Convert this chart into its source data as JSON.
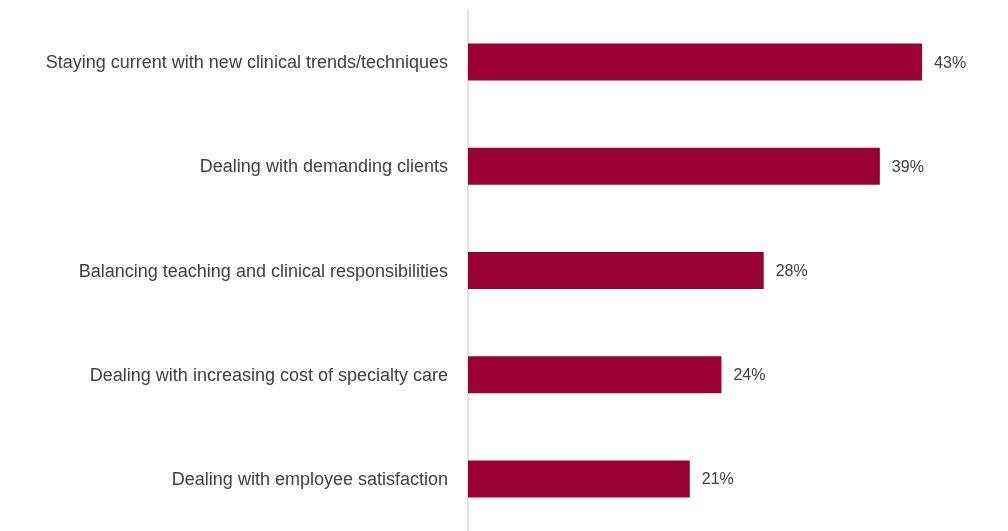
{
  "chart_data": {
    "type": "bar",
    "orientation": "horizontal",
    "categories": [
      "Staying current with new clinical trends/techniques",
      "Dealing with demanding clients",
      "Balancing teaching and clinical responsibilities",
      "Dealing with increasing cost of specialty care",
      "Dealing with employee satisfaction"
    ],
    "values": [
      43,
      39,
      28,
      24,
      21
    ],
    "color": "#990033",
    "value_labels": [
      "43%",
      "39%",
      "28%",
      "24%",
      "21%"
    ],
    "grid": false
  }
}
